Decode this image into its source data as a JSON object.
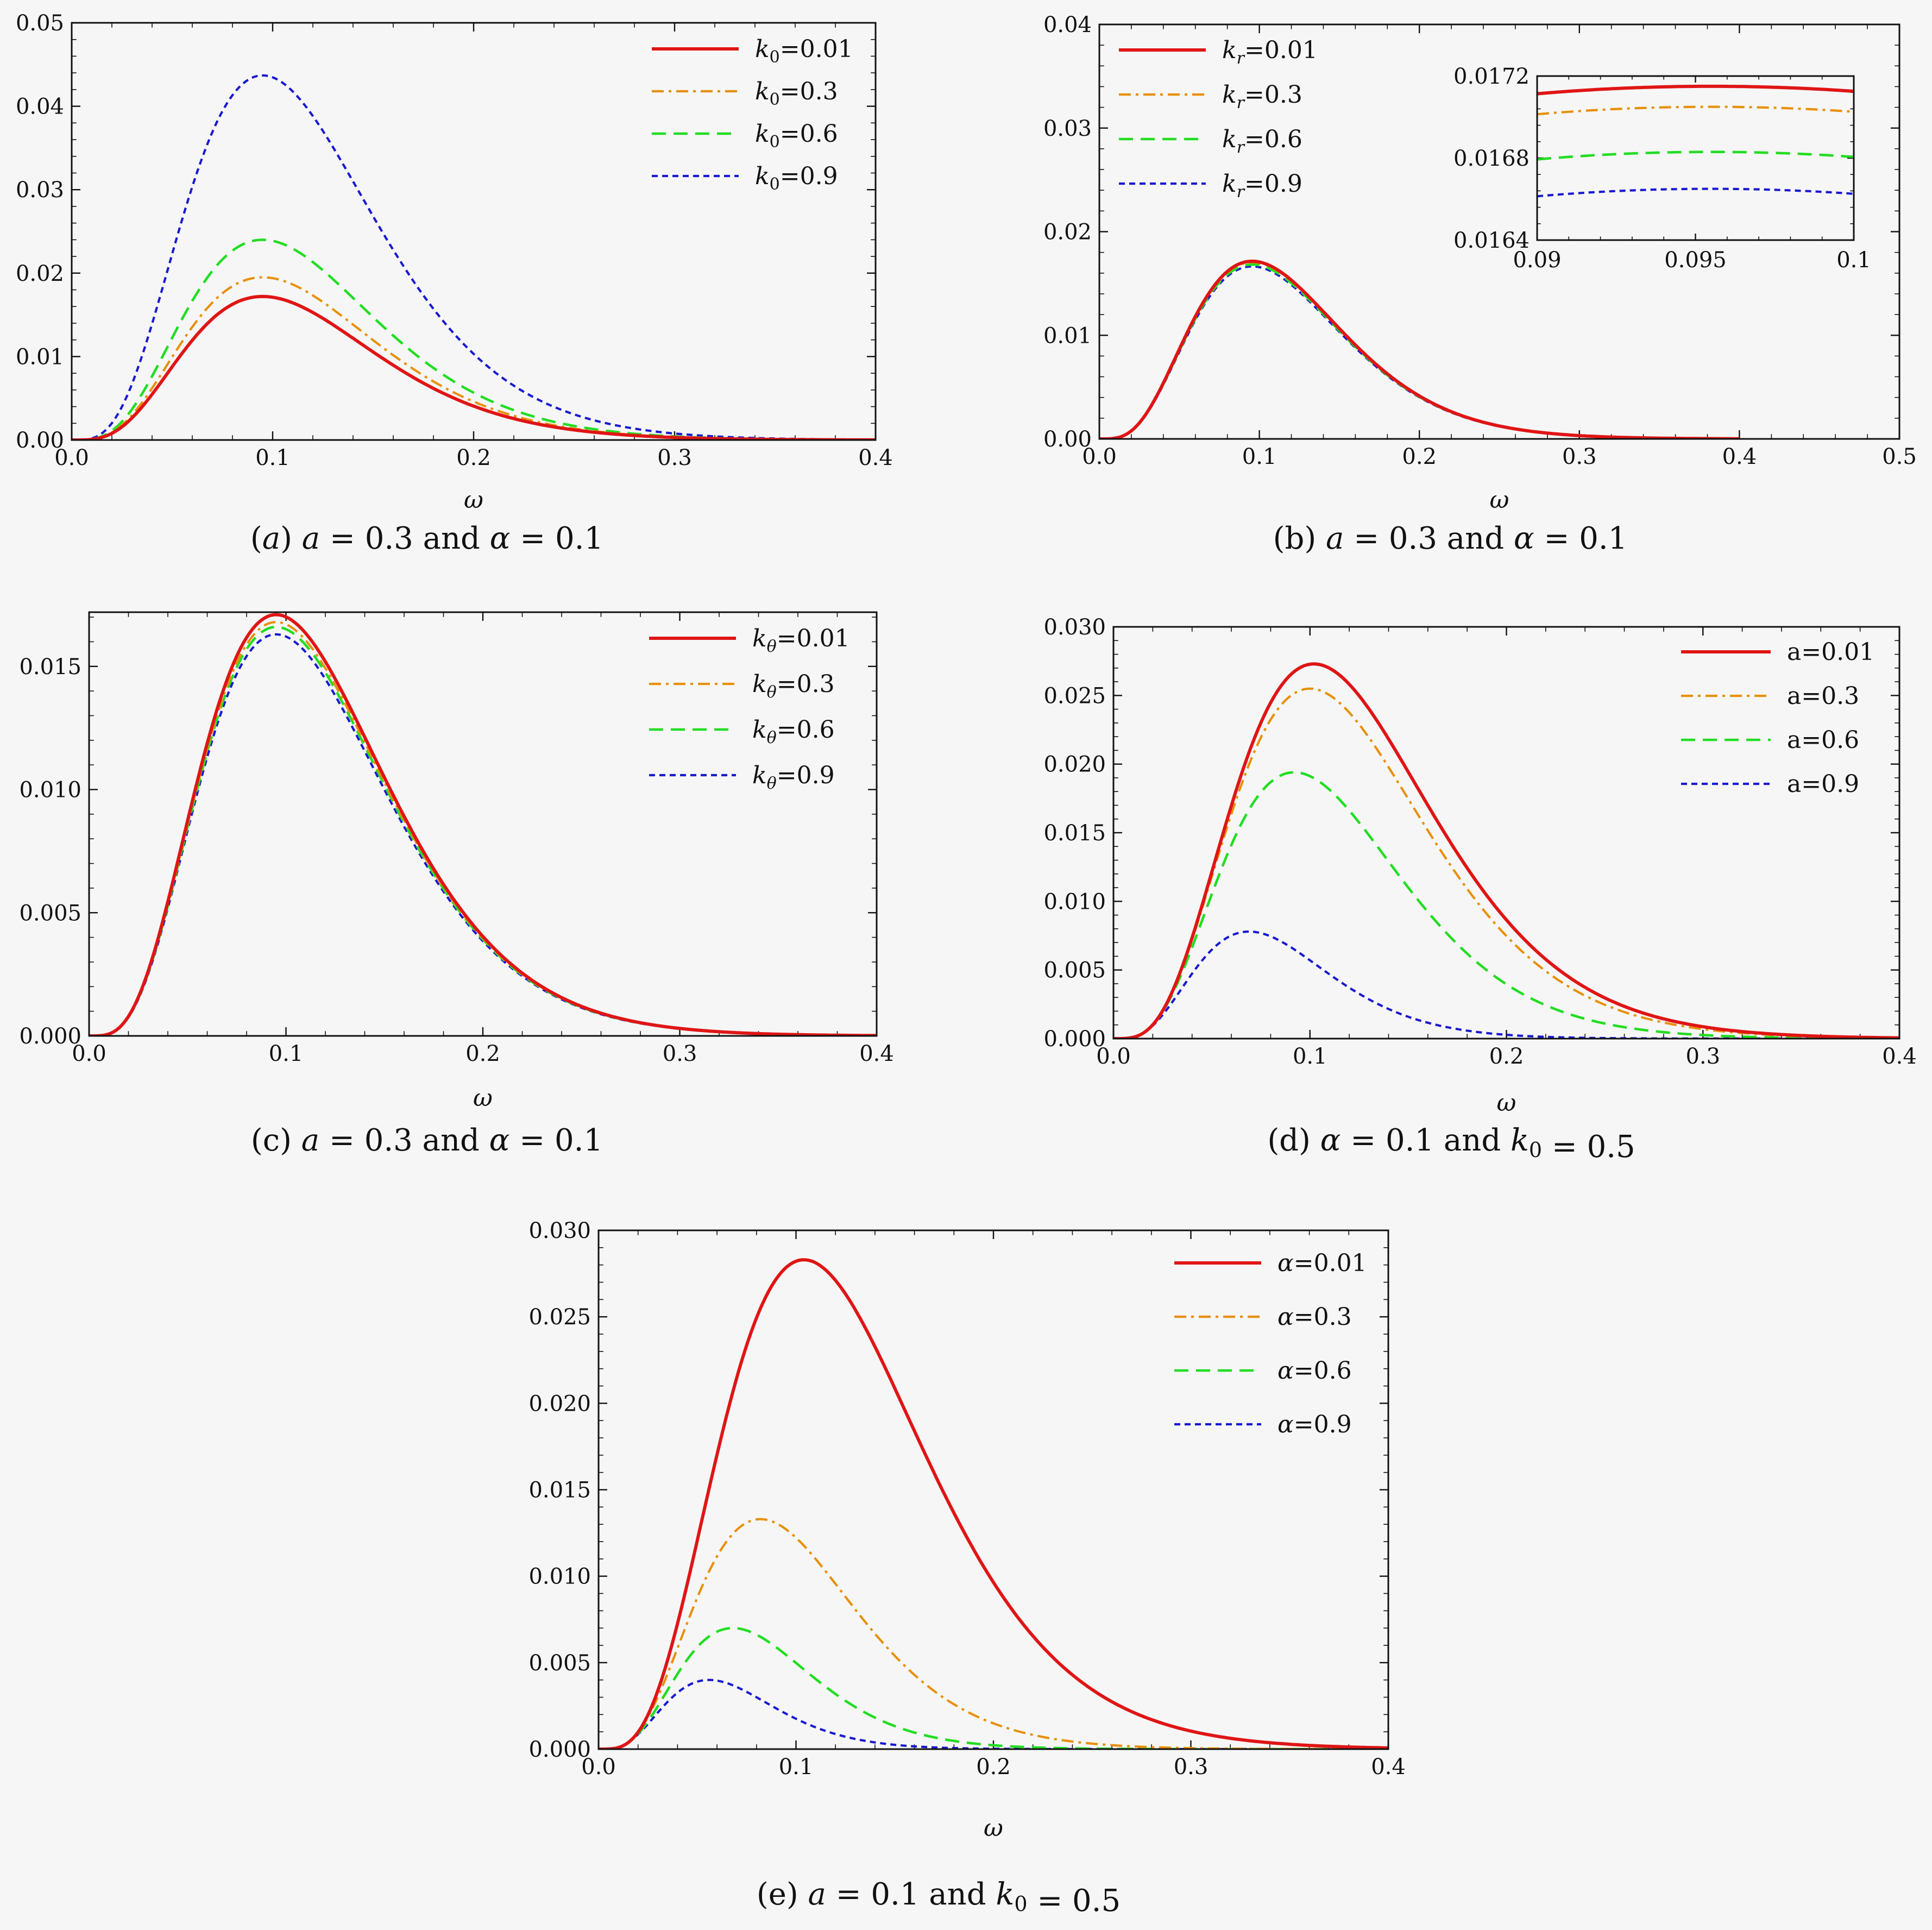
{
  "chart_data": [
    {
      "type": "line",
      "panel": "a",
      "caption": "(a) a = 0.3 and α = 0.1",
      "xlabel": "ω",
      "ylabel": "",
      "xlim": [
        0,
        0.4
      ],
      "ylim": [
        0,
        0.05
      ],
      "xticks": [
        "0.0",
        "0.1",
        "0.2",
        "0.3",
        "0.4"
      ],
      "yticks": [
        "0.00",
        "0.01",
        "0.02",
        "0.03",
        "0.04",
        "0.05"
      ],
      "legend_position": "top-right",
      "series": [
        {
          "name": "k0=0.01",
          "color": "#e01515",
          "style": "solid",
          "peak_x": 0.095,
          "peak_y": 0.0172
        },
        {
          "name": "k0=0.3",
          "color": "#e8900a",
          "style": "dashdot",
          "peak_x": 0.095,
          "peak_y": 0.0195
        },
        {
          "name": "k0=0.6",
          "color": "#22dd22",
          "style": "dashed",
          "peak_x": 0.095,
          "peak_y": 0.024
        },
        {
          "name": "k0=0.9",
          "color": "#1a1ad0",
          "style": "dotted",
          "peak_x": 0.095,
          "peak_y": 0.0437
        }
      ]
    },
    {
      "type": "line",
      "panel": "b",
      "caption": "(b) a = 0.3 and α = 0.1",
      "xlabel": "ω",
      "ylabel": "",
      "xlim": [
        0,
        0.5
      ],
      "ylim": [
        0,
        0.04
      ],
      "xticks": [
        "0.0",
        "0.1",
        "0.2",
        "0.3",
        "0.4",
        "0.5"
      ],
      "yticks": [
        "0.00",
        "0.01",
        "0.02",
        "0.03",
        "0.04"
      ],
      "legend_position": "top-left",
      "series": [
        {
          "name": "kr=0.01",
          "color": "#e01515",
          "style": "solid",
          "peak_x": 0.0955,
          "peak_y": 0.01715
        },
        {
          "name": "kr=0.3",
          "color": "#e8900a",
          "style": "dashdot",
          "peak_x": 0.0955,
          "peak_y": 0.01705
        },
        {
          "name": "kr=0.6",
          "color": "#22dd22",
          "style": "dashed",
          "peak_x": 0.0955,
          "peak_y": 0.01683
        },
        {
          "name": "kr=0.9",
          "color": "#1a1ad0",
          "style": "dotted",
          "peak_x": 0.0955,
          "peak_y": 0.01665
        }
      ],
      "inset": {
        "xlim": [
          0.09,
          0.1
        ],
        "ylim": [
          0.0164,
          0.0172
        ],
        "xticks": [
          "0.09",
          "0.095",
          "0.1"
        ],
        "yticks": [
          "0.0164",
          "0.0168",
          "0.0172"
        ]
      }
    },
    {
      "type": "line",
      "panel": "c",
      "caption": "(c) a = 0.3 and α = 0.1",
      "xlabel": "ω",
      "ylabel": "",
      "xlim": [
        0,
        0.4
      ],
      "ylim": [
        0,
        0.0172
      ],
      "xticks": [
        "0.0",
        "0.1",
        "0.2",
        "0.3",
        "0.4"
      ],
      "yticks": [
        "0.000",
        "0.005",
        "0.010",
        "0.015"
      ],
      "legend_position": "top-right",
      "series": [
        {
          "name": "kθ=0.01",
          "color": "#e01515",
          "style": "solid",
          "peak_x": 0.095,
          "peak_y": 0.0171
        },
        {
          "name": "kθ=0.3",
          "color": "#e8900a",
          "style": "dashdot",
          "peak_x": 0.095,
          "peak_y": 0.0168
        },
        {
          "name": "kθ=0.6",
          "color": "#22dd22",
          "style": "dashed",
          "peak_x": 0.095,
          "peak_y": 0.0166
        },
        {
          "name": "kθ=0.9",
          "color": "#1a1ad0",
          "style": "dotted",
          "peak_x": 0.095,
          "peak_y": 0.0163
        }
      ]
    },
    {
      "type": "line",
      "panel": "d",
      "caption": "(d) α = 0.1 and k0 = 0.5",
      "xlabel": "ω",
      "ylabel": "",
      "xlim": [
        0,
        0.4
      ],
      "ylim": [
        0,
        0.03
      ],
      "xticks": [
        "0.0",
        "0.1",
        "0.2",
        "0.3",
        "0.4"
      ],
      "yticks": [
        "0.000",
        "0.005",
        "0.010",
        "0.015",
        "0.020",
        "0.025",
        "0.030"
      ],
      "legend_position": "top-right",
      "series": [
        {
          "name": "a=0.01",
          "color": "#e01515",
          "style": "solid",
          "peak_x": 0.102,
          "peak_y": 0.0273
        },
        {
          "name": "a=0.3",
          "color": "#e8900a",
          "style": "dashdot",
          "peak_x": 0.1,
          "peak_y": 0.0255
        },
        {
          "name": "a=0.6",
          "color": "#22dd22",
          "style": "dashed",
          "peak_x": 0.092,
          "peak_y": 0.0194
        },
        {
          "name": "a=0.9",
          "color": "#1a1ad0",
          "style": "dotted",
          "peak_x": 0.069,
          "peak_y": 0.0078
        }
      ]
    },
    {
      "type": "line",
      "panel": "e",
      "caption": "(e) a = 0.1 and k0 = 0.5",
      "xlabel": "ω",
      "ylabel": "",
      "xlim": [
        0,
        0.4
      ],
      "ylim": [
        0,
        0.03
      ],
      "xticks": [
        "0.0",
        "0.1",
        "0.2",
        "0.3",
        "0.4"
      ],
      "yticks": [
        "0.000",
        "0.005",
        "0.010",
        "0.015",
        "0.020",
        "0.025",
        "0.030"
      ],
      "legend_position": "top-right",
      "series": [
        {
          "name": "α=0.01",
          "color": "#e01515",
          "style": "solid",
          "peak_x": 0.104,
          "peak_y": 0.0283
        },
        {
          "name": "α=0.3",
          "color": "#e8900a",
          "style": "dashdot",
          "peak_x": 0.082,
          "peak_y": 0.0133
        },
        {
          "name": "α=0.6",
          "color": "#22dd22",
          "style": "dashed",
          "peak_x": 0.068,
          "peak_y": 0.007
        },
        {
          "name": "α=0.9",
          "color": "#1a1ad0",
          "style": "dotted",
          "peak_x": 0.056,
          "peak_y": 0.004
        }
      ]
    }
  ]
}
